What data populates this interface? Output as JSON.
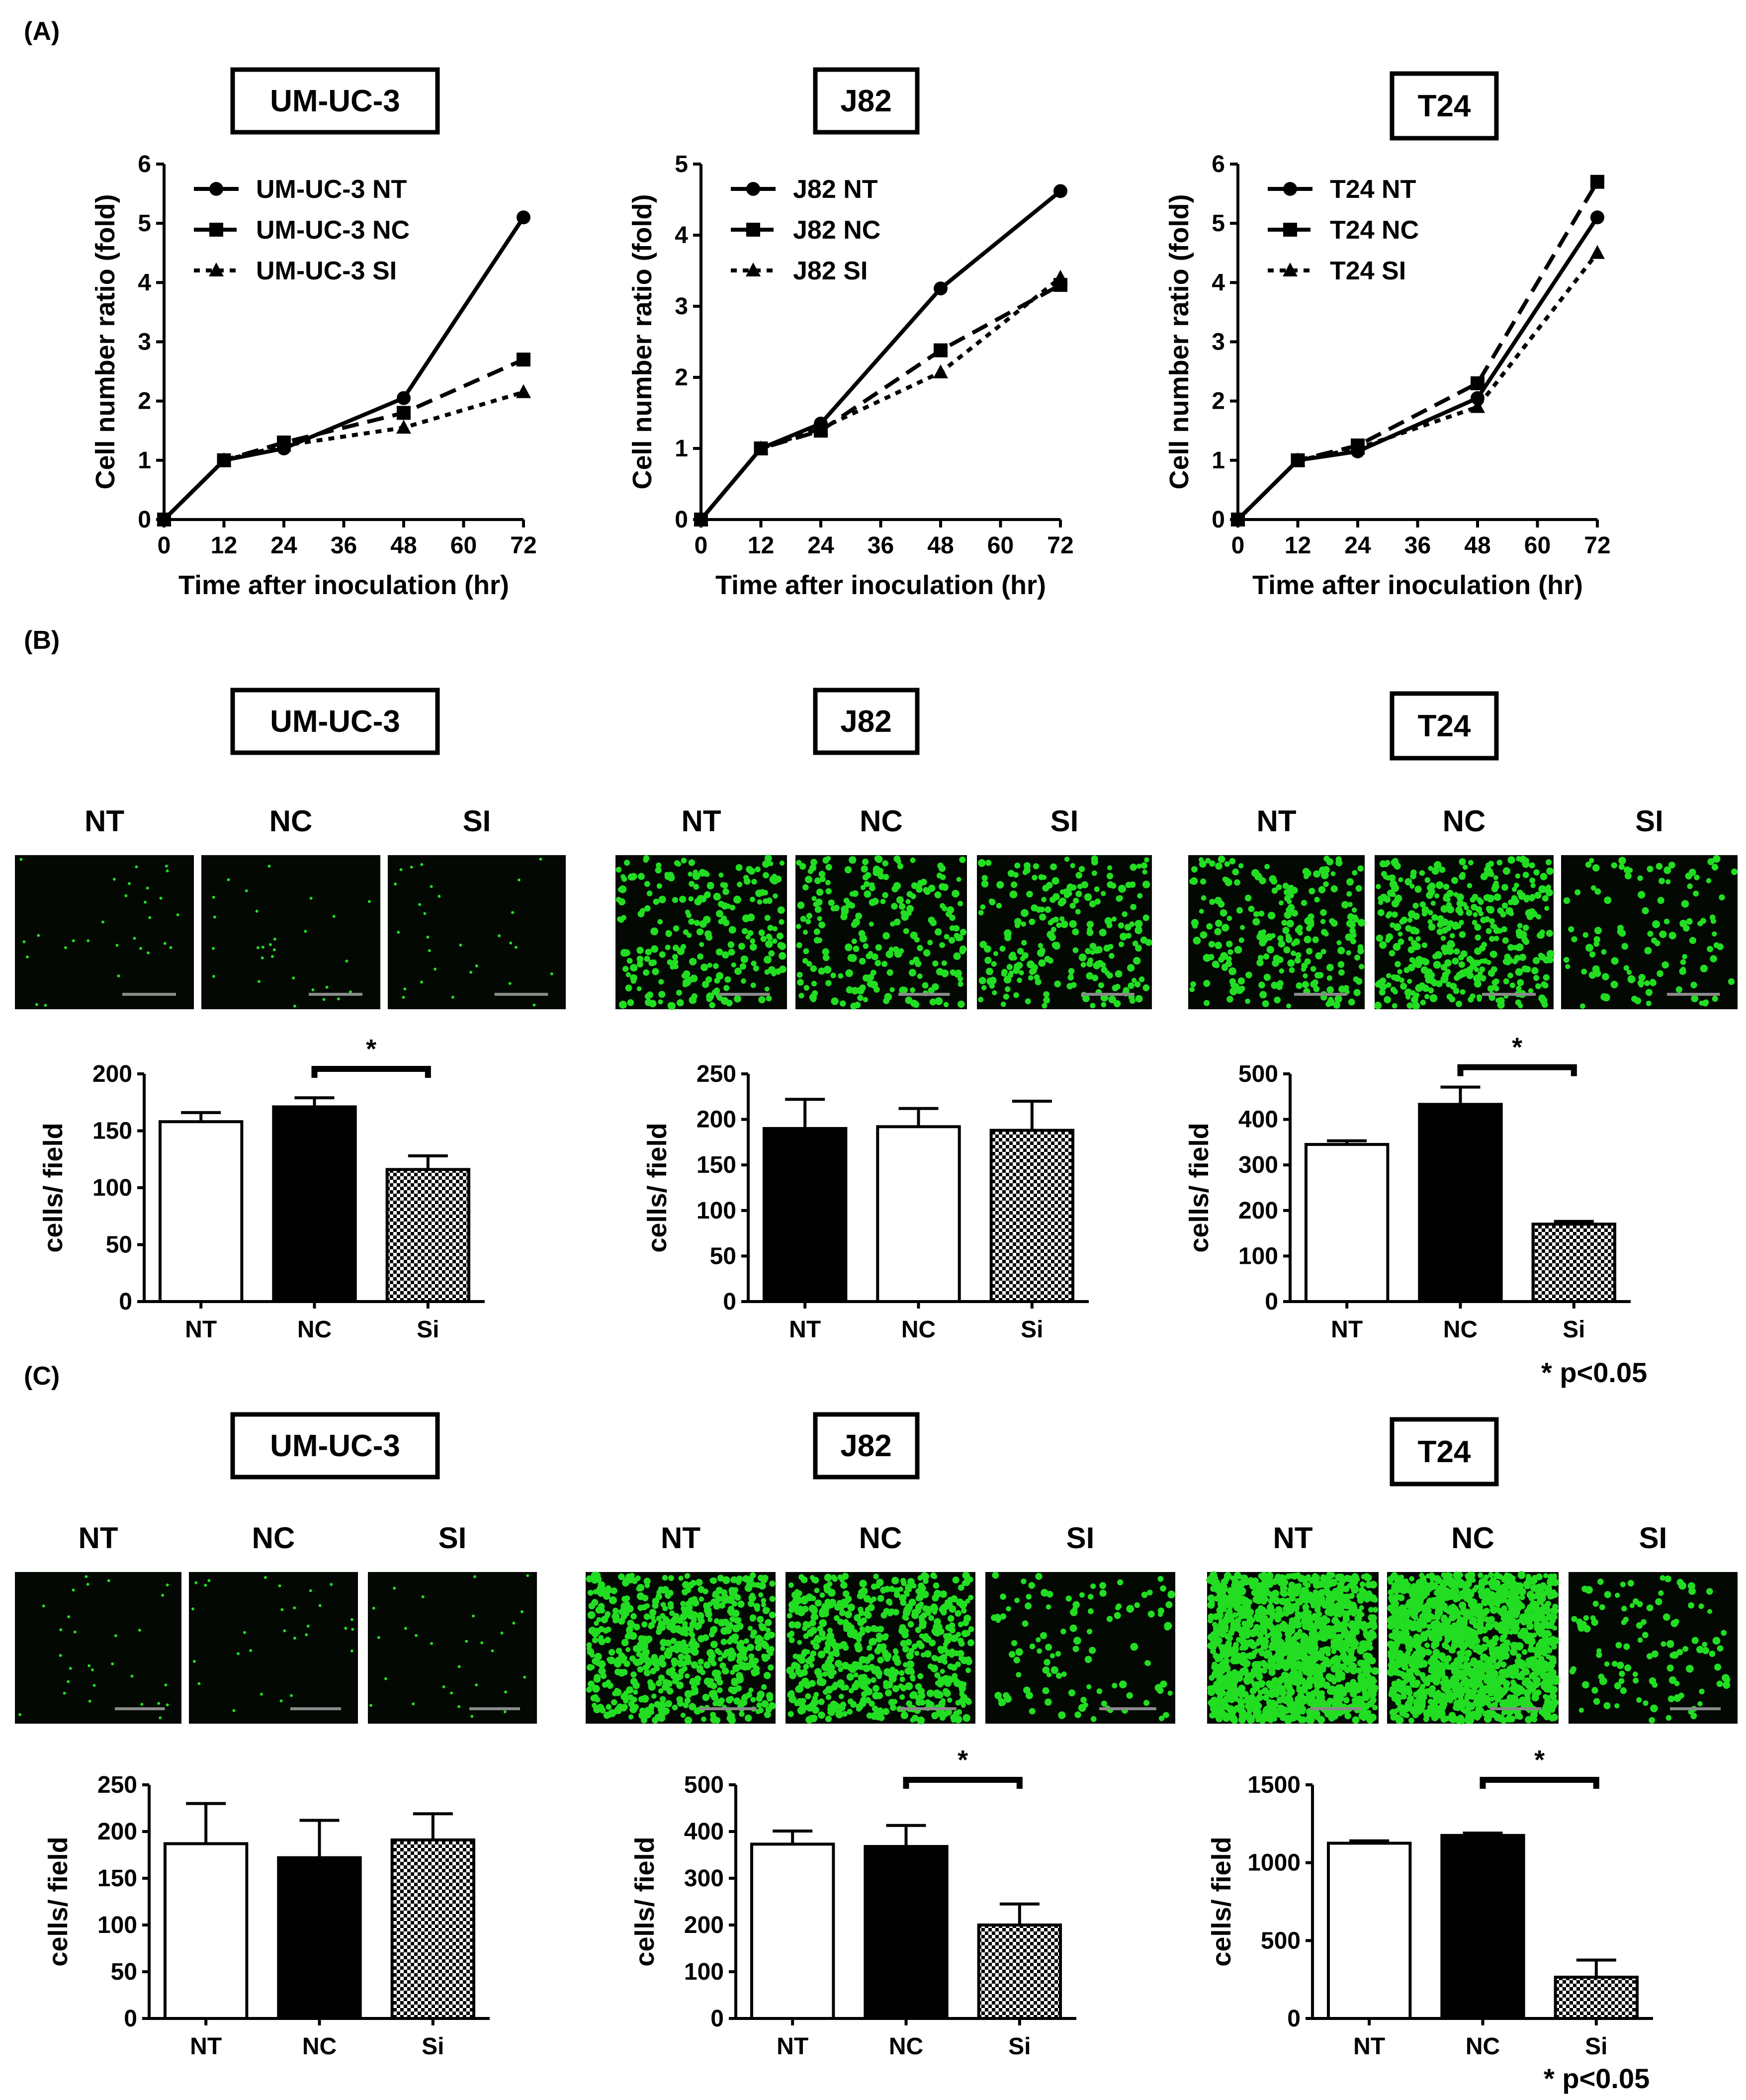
{
  "panels": [
    {
      "letter": "(A)",
      "line_charts": [
        {
          "cell_line": "UM-UC-3",
          "chart_data": {
            "type": "line",
            "xlabel": "Time after inoculation (hr)",
            "ylabel": "Cell number ratio (fold)",
            "xlim": [
              0,
              72
            ],
            "ylim": [
              0,
              6
            ],
            "xticks": [
              "0",
              "12",
              "24",
              "36",
              "48",
              "60",
              "72"
            ],
            "yticks": [
              "0",
              "1",
              "2",
              "3",
              "4",
              "5",
              "6"
            ],
            "x": [
              0,
              12,
              24,
              48,
              72
            ],
            "series": [
              {
                "name": "UM-UC-3 NT",
                "marker": "circle",
                "dash": "solid",
                "values": [
                  0,
                  1.0,
                  1.2,
                  2.05,
                  5.1
                ]
              },
              {
                "name": "UM-UC-3 NC",
                "marker": "square",
                "dash": "dashed",
                "values": [
                  0,
                  1.0,
                  1.3,
                  1.8,
                  2.7
                ]
              },
              {
                "name": "UM-UC-3 SI",
                "marker": "triangle",
                "dash": "dotted",
                "values": [
                  0,
                  1.0,
                  1.25,
                  1.55,
                  2.15
                ]
              }
            ]
          }
        },
        {
          "cell_line": "J82",
          "chart_data": {
            "type": "line",
            "xlabel": "Time after inoculation (hr)",
            "ylabel": "Cell number ratio (fold)",
            "xlim": [
              0,
              72
            ],
            "ylim": [
              0,
              5
            ],
            "xticks": [
              "0",
              "12",
              "24",
              "36",
              "48",
              "60",
              "72"
            ],
            "yticks": [
              "0",
              "1",
              "2",
              "3",
              "4",
              "5"
            ],
            "x": [
              0,
              12,
              24,
              48,
              72
            ],
            "series": [
              {
                "name": "J82 NT",
                "marker": "circle",
                "dash": "solid",
                "values": [
                  0,
                  1.0,
                  1.35,
                  3.25,
                  4.62
                ]
              },
              {
                "name": "J82 NC",
                "marker": "square",
                "dash": "dashed",
                "values": [
                  0,
                  1.0,
                  1.25,
                  2.38,
                  3.3
                ]
              },
              {
                "name": "J82 SI",
                "marker": "triangle",
                "dash": "dotted",
                "values": [
                  0,
                  1.0,
                  1.28,
                  2.07,
                  3.4
                ]
              }
            ]
          }
        },
        {
          "cell_line": "T24",
          "chart_data": {
            "type": "line",
            "xlabel": "Time after inoculation (hr)",
            "ylabel": "Cell number ratio (fold)",
            "xlim": [
              0,
              72
            ],
            "ylim": [
              0,
              6
            ],
            "xticks": [
              "0",
              "12",
              "24",
              "36",
              "48",
              "60",
              "72"
            ],
            "yticks": [
              "0",
              "1",
              "2",
              "3",
              "4",
              "5",
              "6"
            ],
            "x": [
              0,
              12,
              24,
              48,
              72
            ],
            "series": [
              {
                "name": "T24 NT",
                "marker": "circle",
                "dash": "solid",
                "values": [
                  0,
                  1.0,
                  1.15,
                  2.05,
                  5.1
                ]
              },
              {
                "name": "T24 NC",
                "marker": "square",
                "dash": "dashed",
                "values": [
                  0,
                  1.0,
                  1.25,
                  2.3,
                  5.7
                ]
              },
              {
                "name": "T24 SI",
                "marker": "triangle",
                "dash": "dotted",
                "values": [
                  0,
                  1.0,
                  1.2,
                  1.9,
                  4.5
                ]
              }
            ]
          }
        }
      ]
    },
    {
      "letter": "(B)",
      "note": "* p<0.05",
      "groups": [
        {
          "cell_line": "UM-UC-3",
          "image_labels": [
            "NT",
            "NC",
            "SI"
          ],
          "cell_density": [
            "sparse",
            "sparse",
            "sparse"
          ],
          "chart_data": {
            "type": "bar",
            "ylabel": "cells/ field",
            "ylim": [
              0,
              200
            ],
            "yticks": [
              "0",
              "50",
              "100",
              "150",
              "200"
            ],
            "categories": [
              "NT",
              "NC",
              "Si"
            ],
            "values": [
              158,
              171,
              116
            ],
            "errors": [
              8,
              8,
              12
            ],
            "fills": [
              "white",
              "black",
              "checker"
            ],
            "significance": [
              {
                "between": [
                  1,
                  2
                ],
                "label": "*"
              }
            ]
          }
        },
        {
          "cell_line": "J82",
          "image_labels": [
            "NT",
            "NC",
            "SI"
          ],
          "cell_density": [
            "medium",
            "medium",
            "medium"
          ],
          "chart_data": {
            "type": "bar",
            "ylabel": "cells/ field",
            "ylim": [
              0,
              250
            ],
            "yticks": [
              "0",
              "50",
              "100",
              "150",
              "200",
              "250"
            ],
            "categories": [
              "NT",
              "NC",
              "Si"
            ],
            "values": [
              190,
              192,
              188
            ],
            "errors": [
              32,
              20,
              32
            ],
            "fills": [
              "black",
              "white",
              "checker"
            ],
            "significance": []
          }
        },
        {
          "cell_line": "T24",
          "image_labels": [
            "NT",
            "NC",
            "SI"
          ],
          "cell_density": [
            "medium",
            "high",
            "low"
          ],
          "chart_data": {
            "type": "bar",
            "ylabel": "cells/ field",
            "ylim": [
              0,
              500
            ],
            "yticks": [
              "0",
              "100",
              "200",
              "300",
              "400",
              "500"
            ],
            "categories": [
              "NT",
              "NC",
              "Si"
            ],
            "values": [
              345,
              433,
              170
            ],
            "errors": [
              8,
              38,
              6
            ],
            "fills": [
              "white",
              "black",
              "checker"
            ],
            "significance": [
              {
                "between": [
                  1,
                  2
                ],
                "label": "*"
              }
            ]
          }
        }
      ]
    },
    {
      "letter": "(C)",
      "note": "* p<0.05",
      "groups": [
        {
          "cell_line": "UM-UC-3",
          "image_labels": [
            "NT",
            "NC",
            "SI"
          ],
          "cell_density": [
            "sparse",
            "sparse",
            "sparse"
          ],
          "chart_data": {
            "type": "bar",
            "ylabel": "cells/ field",
            "ylim": [
              0,
              250
            ],
            "yticks": [
              "0",
              "50",
              "100",
              "150",
              "200",
              "250"
            ],
            "categories": [
              "NT",
              "NC",
              "Si"
            ],
            "values": [
              187,
              172,
              191
            ],
            "errors": [
              43,
              40,
              28
            ],
            "fills": [
              "white",
              "black",
              "checker"
            ],
            "significance": []
          }
        },
        {
          "cell_line": "J82",
          "image_labels": [
            "NT",
            "NC",
            "SI"
          ],
          "cell_density": [
            "dense",
            "dense",
            "low"
          ],
          "chart_data": {
            "type": "bar",
            "ylabel": "cells/ field",
            "ylim": [
              0,
              500
            ],
            "yticks": [
              "0",
              "100",
              "200",
              "300",
              "400",
              "500"
            ],
            "categories": [
              "NT",
              "NC",
              "Si"
            ],
            "values": [
              373,
              368,
              200
            ],
            "errors": [
              28,
              45,
              45
            ],
            "fills": [
              "white",
              "black",
              "checker"
            ],
            "significance": [
              {
                "between": [
                  1,
                  2
                ],
                "label": "*"
              }
            ]
          }
        },
        {
          "cell_line": "T24",
          "image_labels": [
            "NT",
            "NC",
            "SI"
          ],
          "cell_density": [
            "very-dense",
            "very-dense",
            "low"
          ],
          "chart_data": {
            "type": "bar",
            "ylabel": "cells/ field",
            "ylim": [
              0,
              1500
            ],
            "yticks": [
              "0",
              "500",
              "1000",
              "1500"
            ],
            "categories": [
              "NT",
              "NC",
              "Si"
            ],
            "values": [
              1125,
              1175,
              265
            ],
            "errors": [
              15,
              15,
              110
            ],
            "fills": [
              "white",
              "black",
              "checker"
            ],
            "significance": [
              {
                "between": [
                  1,
                  2
                ],
                "label": "*"
              }
            ]
          }
        }
      ]
    }
  ],
  "colors": {
    "axis": "#000000",
    "cells": "#22dd22",
    "micro_bg": "#030803",
    "scale_bar": "#8a8a8a"
  }
}
